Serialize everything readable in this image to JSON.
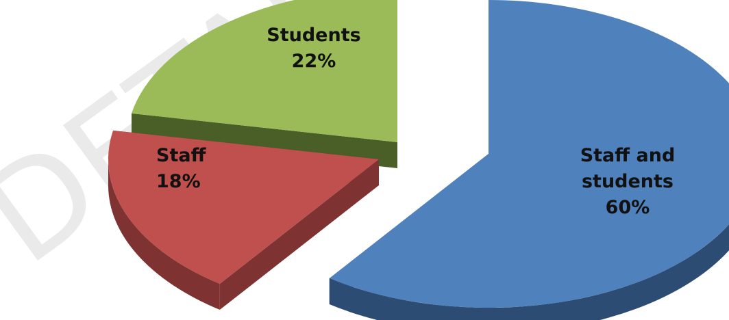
{
  "watermark": "DETAIL",
  "colors": {
    "blue_top": "#4F81BD",
    "blue_side": "#2D4C73",
    "red_top": "#C0504D",
    "red_side": "#7E3231",
    "green_top": "#9BBB59",
    "green_side": "#4A5E28"
  },
  "chart_data": {
    "type": "pie",
    "style": "3d-exploded",
    "grid": false,
    "legend": "none",
    "slices": [
      {
        "label": "Staff and students",
        "value": 60,
        "display": "60%",
        "color": "#4F81BD"
      },
      {
        "label": "Staff",
        "value": 18,
        "display": "18%",
        "color": "#C0504D"
      },
      {
        "label": "Students",
        "value": 22,
        "display": "22%",
        "color": "#9BBB59"
      }
    ]
  }
}
